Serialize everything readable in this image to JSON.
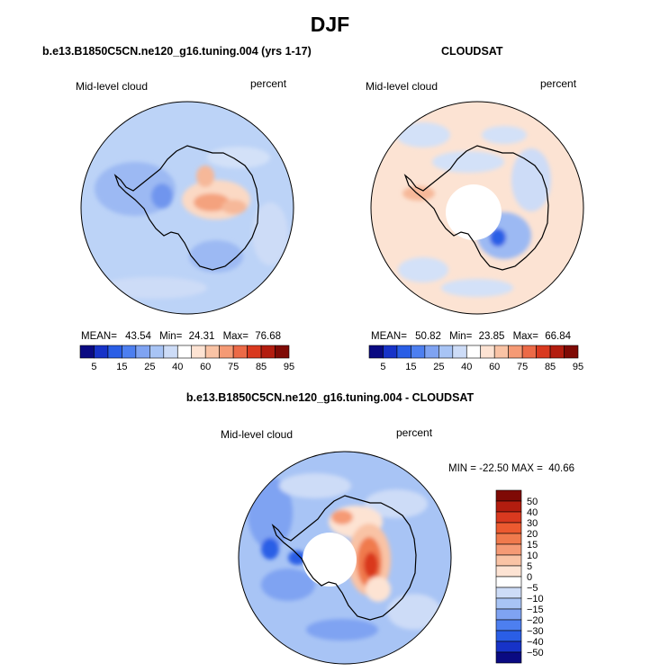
{
  "page_title": "DJF",
  "panels": [
    {
      "title": "b.e13.B1850C5CN.ne120_g16.tuning.004 (yrs 1-17)",
      "left_label": "Mid-level cloud",
      "right_label": "percent",
      "stats": {
        "mean_label": "MEAN=",
        "mean": "43.54",
        "min_label": "Min=",
        "min": "24.31",
        "max_label": "Max=",
        "max": "76.68"
      }
    },
    {
      "title": "CLOUDSAT",
      "left_label": "Mid-level cloud",
      "right_label": "percent",
      "stats": {
        "mean_label": "MEAN=",
        "mean": "50.82",
        "min_label": "Min=",
        "min": "23.85",
        "max_label": "Max=",
        "max": "66.84"
      }
    },
    {
      "title": "b.e13.B1850C5CN.ne120_g16.tuning.004 - CLOUDSAT",
      "left_label": "Mid-level cloud",
      "right_label": "percent",
      "stats_text": "MIN = -22.50 MAX =  40.66"
    }
  ],
  "chart_data": [
    {
      "type": "heatmap",
      "projection": "south polar stereographic",
      "variable": "Mid-level cloud",
      "units": "percent",
      "stats": {
        "mean": 43.54,
        "min": 24.31,
        "max": 76.68
      },
      "colorbar": {
        "orientation": "horizontal",
        "labels": [
          "5",
          "15",
          "25",
          "40",
          "60",
          "75",
          "85",
          "95"
        ],
        "colors": [
          "#0a0a82",
          "#1733c8",
          "#2a5ee6",
          "#4d7ff0",
          "#7fa3f2",
          "#a8c4f5",
          "#cddcf7",
          "#ffffff",
          "#fde3d3",
          "#f9c3a5",
          "#f59a75",
          "#ec6a47",
          "#d9391f",
          "#b31d0f",
          "#7f0a05"
        ]
      }
    },
    {
      "type": "heatmap",
      "projection": "south polar stereographic",
      "variable": "Mid-level cloud",
      "units": "percent",
      "stats": {
        "mean": 50.82,
        "min": 23.85,
        "max": 66.84
      },
      "colorbar": {
        "orientation": "horizontal",
        "labels": [
          "5",
          "15",
          "25",
          "40",
          "60",
          "75",
          "85",
          "95"
        ],
        "colors": [
          "#0a0a82",
          "#1733c8",
          "#2a5ee6",
          "#4d7ff0",
          "#7fa3f2",
          "#a8c4f5",
          "#cddcf7",
          "#ffffff",
          "#fde3d3",
          "#f9c3a5",
          "#f59a75",
          "#ec6a47",
          "#d9391f",
          "#b31d0f",
          "#7f0a05"
        ]
      }
    },
    {
      "type": "heatmap",
      "projection": "south polar stereographic",
      "variable": "Mid-level cloud",
      "units": "percent",
      "stats": {
        "min": -22.5,
        "max": 40.66
      },
      "colorbar": {
        "orientation": "vertical",
        "labels": [
          "50",
          "40",
          "30",
          "20",
          "15",
          "10",
          "5",
          "0",
          "−5",
          "−10",
          "−15",
          "−20",
          "−30",
          "−40",
          "−50"
        ],
        "colors": [
          "#7f0a05",
          "#b31d0f",
          "#d9391f",
          "#ec5a30",
          "#f07a4d",
          "#f59a75",
          "#f9c3a5",
          "#fde3d3",
          "#ffffff",
          "#cddcf7",
          "#a8c4f5",
          "#7fa3f2",
          "#4d7ff0",
          "#2a5ee6",
          "#1733c8",
          "#0a0a82"
        ]
      }
    }
  ],
  "icons": {
    "continent_outline": "antarctica-coastline"
  }
}
